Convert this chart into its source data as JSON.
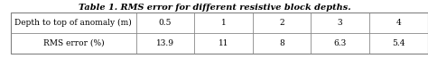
{
  "title": "Table 1. RMS error for different resistive block depths.",
  "col_headers": [
    "0.5",
    "1",
    "2",
    "3",
    "4"
  ],
  "row_labels": [
    "Depth to top of anomaly (m)",
    "RMS error (%)"
  ],
  "values": [
    [
      "0.5",
      "1",
      "2",
      "3",
      "4"
    ],
    [
      "13.9",
      "11",
      "8",
      "6.3",
      "5.4"
    ]
  ],
  "bg_color": "#f5f5f5",
  "border_color": "#aaaaaa",
  "title_fontsize": 7,
  "cell_fontsize": 6.5
}
